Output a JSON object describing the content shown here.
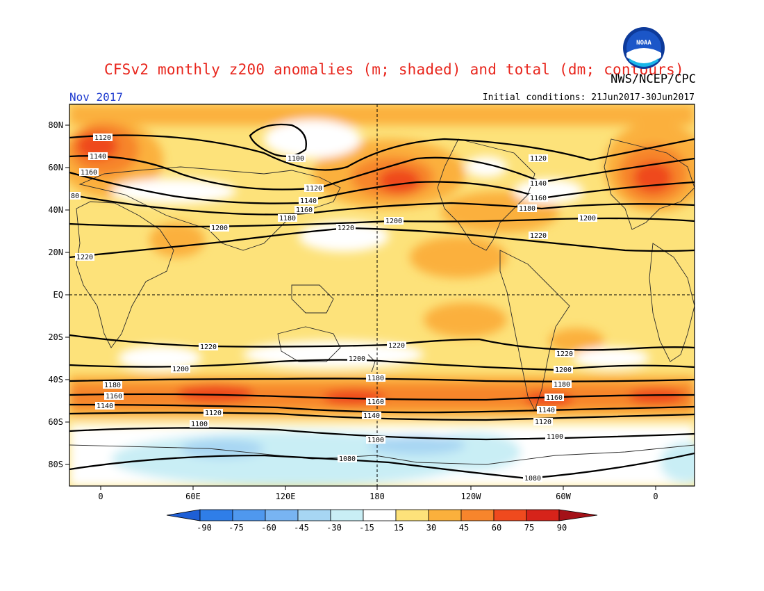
{
  "header": {
    "title": "CFSv2 monthly z200 anomalies (m; shaded) and total (dm; contours)",
    "agency": "NWS/NCEP/CPC",
    "logo_text": "NOAA",
    "month": "Nov 2017",
    "initial_conditions": "Initial conditions: 21Jun2017-30Jun2017"
  },
  "map": {
    "lat_labels": [
      "80N",
      "60N",
      "40N",
      "20N",
      "EQ",
      "20S",
      "40S",
      "60S",
      "80S"
    ],
    "lon_labels": [
      "0",
      "60E",
      "120E",
      "180",
      "120W",
      "60W",
      "0"
    ],
    "contour_labels": [
      "1080",
      "1100",
      "1120",
      "1140",
      "1160",
      "1180",
      "1200",
      "1220",
      "80"
    ]
  },
  "colorbar": {
    "ticks": [
      "-90",
      "-75",
      "-60",
      "-45",
      "-30",
      "-15",
      "15",
      "30",
      "45",
      "60",
      "75",
      "90"
    ],
    "colors": [
      "#1e5fd6",
      "#2f7ee8",
      "#4f98ee",
      "#78b4f2",
      "#a7d6f3",
      "#c9eef5",
      "#ffffff",
      "#fde27a",
      "#fbb03c",
      "#f7852c",
      "#ef4a1e",
      "#d6231a",
      "#a41218"
    ]
  }
}
